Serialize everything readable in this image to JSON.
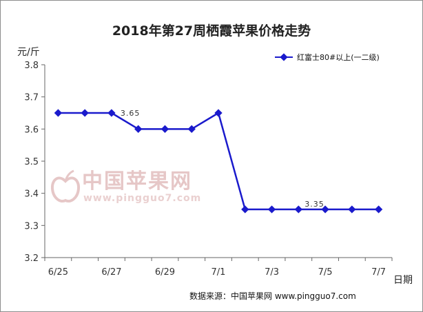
{
  "chart_data": {
    "type": "line",
    "title": "2018年第27周栖霞苹果价格走势",
    "ylabel": "元/斤",
    "xlabel": "日期",
    "ylim": [
      3.2,
      3.8
    ],
    "y_ticks": [
      "3.2",
      "3.3",
      "3.4",
      "3.5",
      "3.6",
      "3.7",
      "3.8"
    ],
    "categories": [
      "6/25",
      "6/26",
      "6/27",
      "6/28",
      "6/29",
      "6/30",
      "7/1",
      "7/2",
      "7/3",
      "7/4",
      "7/5",
      "7/6",
      "7/7"
    ],
    "x_tick_labels": [
      "6/25",
      "",
      "6/27",
      "",
      "6/29",
      "",
      "7/1",
      "",
      "7/3",
      "",
      "7/5",
      "",
      "7/7"
    ],
    "series": [
      {
        "name": "红富士80#以上(一二级)",
        "values": [
          3.65,
          3.65,
          3.65,
          3.6,
          3.6,
          3.6,
          3.65,
          3.35,
          3.35,
          3.35,
          3.35,
          3.35,
          3.35
        ],
        "color": "#1a1acc"
      }
    ],
    "annotations": [
      {
        "index": 2,
        "text": "3.65"
      },
      {
        "index": 9,
        "text": "3.35"
      }
    ],
    "legend_position": "top-right",
    "grid": false
  },
  "watermark": {
    "text": "中国苹果网",
    "url": "www.pingguo7.com"
  },
  "source": "数据来源：中国苹果网 www.pingguo7.com"
}
